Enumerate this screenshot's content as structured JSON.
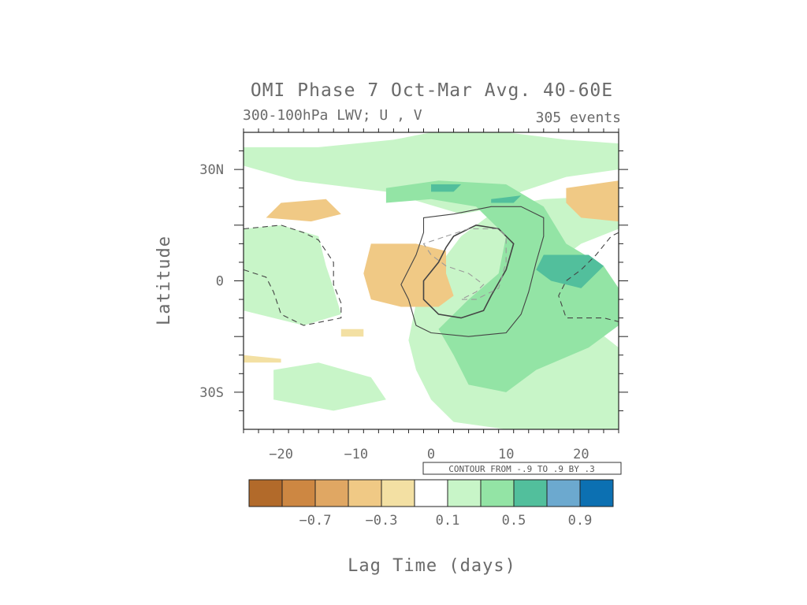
{
  "chart_data": {
    "type": "heatmap",
    "title": "OMI Phase 7 Oct-Mar Avg. 40-60E",
    "subtitle_left": "300-100hPa LWV; U , V",
    "subtitle_right": "305 events",
    "xlabel": "Lag Time (days)",
    "ylabel": "Latitude",
    "xlim": [
      -25,
      25
    ],
    "ylim": [
      -40,
      40
    ],
    "x_ticks": [
      -20,
      -10,
      0,
      10,
      20
    ],
    "x_tick_labels": [
      "−20",
      "−10",
      "0",
      "10",
      "20"
    ],
    "y_ticks": [
      30,
      0,
      -30
    ],
    "y_tick_labels": [
      "30N",
      "0",
      "30S"
    ],
    "contour_note": "CONTOUR FROM -.9 TO .9 BY .3",
    "colorbar": {
      "levels": [
        -0.9,
        -0.7,
        -0.5,
        -0.3,
        -0.1,
        0.1,
        0.3,
        0.5,
        0.7,
        0.9
      ],
      "label_values": [
        "−0.7",
        "−0.3",
        "0.1",
        "0.5",
        "0.9"
      ],
      "colors": [
        "#b26a2a",
        "#cd8742",
        "#e0a763",
        "#f0c985",
        "#f3e0a3",
        "#ffffff",
        "#c8f5c8",
        "#93e4a5",
        "#52bf9c",
        "#6ca9cf",
        "#0c70b2"
      ]
    },
    "regions": [
      {
        "level": 0.3,
        "points": [
          [
            -25,
            36
          ],
          [
            -15,
            36
          ],
          [
            -5,
            38
          ],
          [
            0,
            40
          ],
          [
            10,
            40
          ],
          [
            18,
            38
          ],
          [
            25,
            37
          ],
          [
            25,
            30
          ],
          [
            18,
            28
          ],
          [
            12,
            24
          ],
          [
            8,
            18
          ],
          [
            4,
            12
          ],
          [
            1,
            4
          ],
          [
            -2,
            -6
          ],
          [
            -3,
            -16
          ],
          [
            -2,
            -24
          ],
          [
            0,
            -32
          ],
          [
            3,
            -38
          ],
          [
            10,
            -40
          ],
          [
            25,
            -40
          ],
          [
            25,
            -18
          ],
          [
            20,
            -10
          ],
          [
            17,
            -4
          ],
          [
            16,
            4
          ],
          [
            20,
            10
          ],
          [
            25,
            14
          ],
          [
            25,
            23
          ],
          [
            15,
            22
          ],
          [
            4,
            18
          ],
          [
            -6,
            24
          ],
          [
            -18,
            27
          ],
          [
            -25,
            31
          ]
        ]
      },
      {
        "level": 0.3,
        "points": [
          [
            -25,
            14
          ],
          [
            -20,
            15
          ],
          [
            -15,
            12
          ],
          [
            -14,
            4
          ],
          [
            -13,
            -2
          ],
          [
            -12,
            -9
          ],
          [
            -17,
            -12
          ],
          [
            -25,
            -8
          ]
        ]
      },
      {
        "level": 0.3,
        "points": [
          [
            -21,
            -24
          ],
          [
            -15,
            -22
          ],
          [
            -8,
            -26
          ],
          [
            -6,
            -32
          ],
          [
            -13,
            -35
          ],
          [
            -21,
            -32
          ]
        ]
      },
      {
        "level": 0.5,
        "points": [
          [
            -6,
            25
          ],
          [
            1,
            27
          ],
          [
            10,
            26
          ],
          [
            15,
            20
          ],
          [
            18,
            10
          ],
          [
            23,
            4
          ],
          [
            25,
            -2
          ],
          [
            25,
            -12
          ],
          [
            21,
            -18
          ],
          [
            14,
            -24
          ],
          [
            10,
            -30
          ],
          [
            5,
            -28
          ],
          [
            3,
            -20
          ],
          [
            1,
            -13
          ],
          [
            5,
            -5
          ],
          [
            9,
            2
          ],
          [
            10,
            12
          ],
          [
            6,
            20
          ],
          [
            0,
            22
          ],
          [
            -6,
            21
          ]
        ]
      },
      {
        "level": 0.7,
        "points": [
          [
            0,
            26
          ],
          [
            4,
            26
          ],
          [
            3,
            24
          ],
          [
            0,
            24
          ]
        ]
      },
      {
        "level": 0.7,
        "points": [
          [
            8,
            22
          ],
          [
            12,
            23
          ],
          [
            11,
            21
          ],
          [
            8,
            21
          ]
        ]
      },
      {
        "level": 0.7,
        "points": [
          [
            15,
            7
          ],
          [
            21,
            7
          ],
          [
            23,
            4
          ],
          [
            20,
            -2
          ],
          [
            16,
            0
          ],
          [
            14,
            3
          ]
        ]
      },
      {
        "level": -0.3,
        "points": [
          [
            -20,
            21
          ],
          [
            -14,
            22
          ],
          [
            -12,
            18
          ],
          [
            -16,
            16
          ],
          [
            -22,
            17
          ]
        ]
      },
      {
        "level": -0.3,
        "points": [
          [
            18,
            25
          ],
          [
            25,
            27
          ],
          [
            25,
            16
          ],
          [
            20,
            17
          ],
          [
            18,
            21
          ]
        ]
      },
      {
        "level": -0.3,
        "points": [
          [
            -8,
            10
          ],
          [
            -2,
            10
          ],
          [
            2,
            8
          ],
          [
            2,
            2
          ],
          [
            3,
            -4
          ],
          [
            1,
            -7
          ],
          [
            -4,
            -7
          ],
          [
            -8,
            -5
          ],
          [
            -9,
            2
          ]
        ]
      },
      {
        "level": -0.1,
        "points": [
          [
            -25,
            -20
          ],
          [
            -20,
            -21
          ],
          [
            -20,
            -22
          ],
          [
            -25,
            -22
          ]
        ]
      },
      {
        "level": -0.1,
        "points": [
          [
            -12,
            -13
          ],
          [
            -9,
            -13
          ],
          [
            -9,
            -15
          ],
          [
            -12,
            -15
          ]
        ]
      }
    ],
    "contours": [
      {
        "level": 0.3,
        "style": "solid",
        "points": [
          [
            -1,
            17
          ],
          [
            3,
            18
          ],
          [
            8,
            20
          ],
          [
            12,
            20
          ],
          [
            15,
            17
          ],
          [
            15,
            12
          ],
          [
            14,
            5
          ],
          [
            13,
            -3
          ],
          [
            12,
            -9
          ],
          [
            10,
            -14
          ],
          [
            5,
            -15
          ],
          [
            0,
            -14
          ],
          [
            -2,
            -12
          ],
          [
            -3,
            -5
          ],
          [
            -4,
            -1
          ],
          [
            -2,
            7
          ],
          [
            -1,
            13
          ]
        ]
      },
      {
        "level": 0.6,
        "style": "solid",
        "points": [
          [
            3,
            12
          ],
          [
            6,
            15
          ],
          [
            9,
            14
          ],
          [
            11,
            10
          ],
          [
            10,
            3
          ],
          [
            8,
            -4
          ],
          [
            7,
            -8
          ],
          [
            4,
            -10
          ],
          [
            1,
            -9
          ],
          [
            -1,
            -5
          ],
          [
            -1,
            0
          ],
          [
            1,
            5
          ],
          [
            2,
            9
          ]
        ]
      },
      {
        "level": -0.3,
        "style": "dashed",
        "points": [
          [
            -25,
            14
          ],
          [
            -20,
            15
          ],
          [
            -17,
            13
          ],
          [
            -15,
            11
          ],
          [
            -13,
            5
          ],
          [
            -13,
            -1
          ],
          [
            -12,
            -6
          ],
          [
            -12,
            -10
          ],
          [
            -17,
            -12
          ],
          [
            -20,
            -9
          ],
          [
            -21,
            -3
          ],
          [
            -22,
            1
          ],
          [
            -25,
            3
          ]
        ]
      },
      {
        "level": -0.3,
        "style": "dashed",
        "points": [
          [
            25,
            13
          ],
          [
            24,
            12
          ],
          [
            22,
            7
          ],
          [
            20,
            3
          ],
          [
            18,
            0
          ],
          [
            17,
            -4
          ],
          [
            18,
            -10
          ],
          [
            21,
            -10
          ],
          [
            23,
            -10
          ],
          [
            25,
            -11
          ]
        ]
      },
      {
        "level": -0.3,
        "style": "dashed-light",
        "points": [
          [
            2,
            12
          ],
          [
            5,
            14
          ],
          [
            9,
            14
          ],
          [
            10,
            12
          ],
          [
            10,
            5
          ],
          [
            9,
            -2
          ],
          [
            8,
            -3
          ],
          [
            6,
            -5
          ],
          [
            4,
            -5
          ],
          [
            6,
            -3
          ],
          [
            7,
            -1
          ],
          [
            5,
            2
          ],
          [
            2,
            4
          ],
          [
            0,
            7
          ],
          [
            -1,
            10
          ]
        ]
      }
    ]
  }
}
